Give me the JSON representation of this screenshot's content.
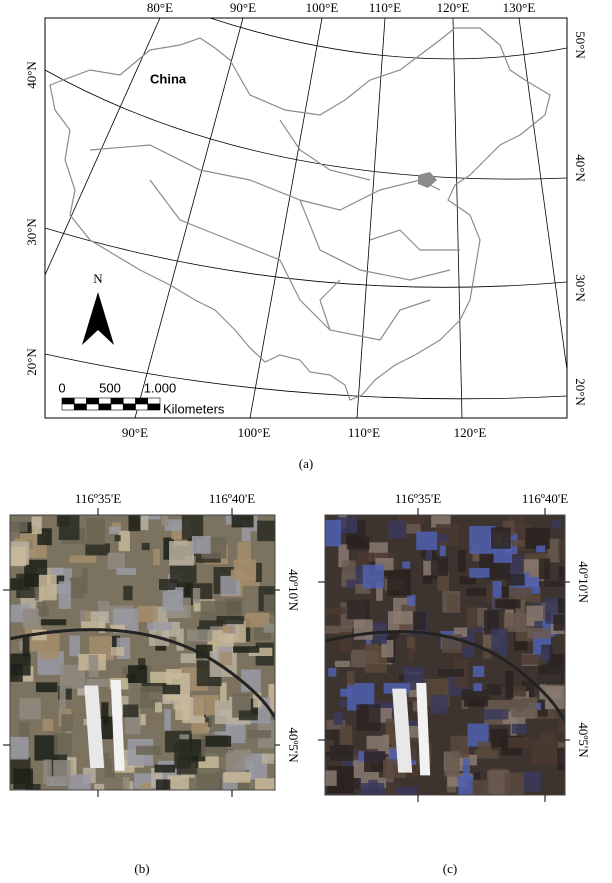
{
  "panel_a": {
    "top_labels": [
      "80°E",
      "90°E",
      "100°E",
      "110°E",
      "120°E",
      "130°E"
    ],
    "bottom_labels": [
      "90°E",
      "100°E",
      "110°E",
      "120°E"
    ],
    "left_labels": [
      "40°N",
      "30°N",
      "20°N"
    ],
    "right_labels": [
      "50°N",
      "40°N",
      "30°N",
      "20°N"
    ],
    "country": "China",
    "north": "N",
    "scale_labels": [
      "0",
      "500",
      "1.000"
    ],
    "scale_unit": "Kilometers",
    "caption": "(a)"
  },
  "panel_b": {
    "top_labels": [
      "116º35'E",
      "116º40'E"
    ],
    "right_labels": [
      "40º10'N",
      "40º5'N"
    ],
    "caption": "(b)"
  },
  "panel_c": {
    "top_labels": [
      "116º35'E",
      "116º40'E"
    ],
    "right_labels": [
      "40º10'N",
      "40º5'N"
    ],
    "caption": "(c)"
  }
}
